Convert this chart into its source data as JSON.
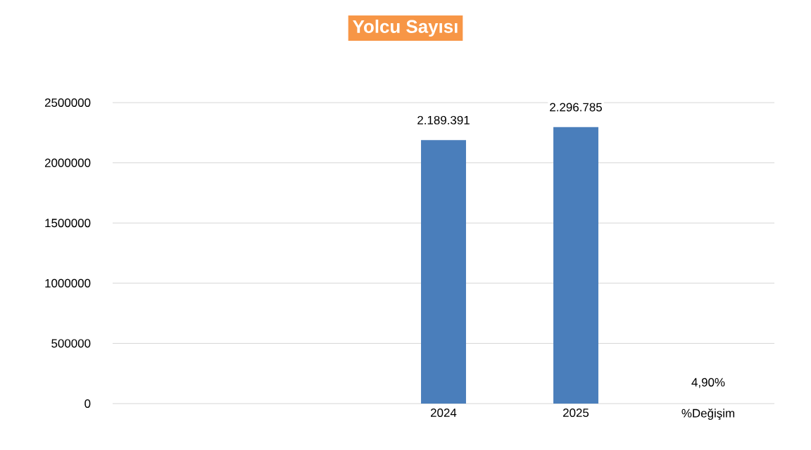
{
  "chart_data": {
    "type": "bar",
    "title": "Yolcu Sayısı",
    "categories": [
      null,
      null,
      "2024",
      "2025",
      "%Değişim"
    ],
    "values": [
      null,
      null,
      2189391,
      2296785,
      4.9
    ],
    "value_labels": [
      null,
      null,
      "2.189.391",
      "2.296.785",
      "4,90%"
    ],
    "color": "#4a7ebb",
    "ylim": [
      0,
      2500000
    ],
    "yticks": [
      0,
      500000,
      1000000,
      1500000,
      2000000,
      2500000
    ],
    "grid": "y"
  }
}
